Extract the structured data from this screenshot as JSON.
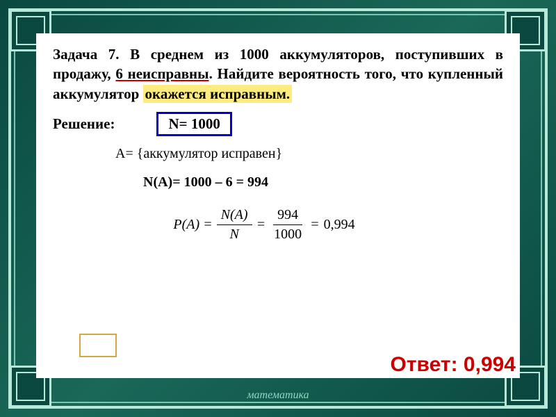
{
  "problem": {
    "prefix": "Задача 7. В среднем из 1000 аккумуляторов, поступивших в продажу, ",
    "underlined": "6 неисправны",
    "middle": ". Найдите вероятность того, что купленный аккумулятор ",
    "highlighted": "окажется исправным."
  },
  "solution": {
    "label": "Решение:",
    "n_total": "N= 1000",
    "event_definition": "A= {аккумулятор исправен}",
    "na_calculation": "N(A)= 1000 – 6 = 994",
    "formula": {
      "lhs": "P(A) =",
      "frac1_num": "N(A)",
      "frac1_den": "N",
      "eq1": "=",
      "frac2_num": "994",
      "frac2_den": "1000",
      "eq2": "=",
      "result": "0,994"
    }
  },
  "answer": {
    "label": "Ответ: ",
    "value": "0,994"
  },
  "footer": "математика",
  "style": {
    "frame_gradient": [
      "#0a4840",
      "#1a6858"
    ],
    "border_light": "#b8e8d8",
    "border_mid": "#7ac8b0",
    "content_bg": "#ffffff",
    "underline_color": "#cc0000",
    "highlight_bg": "#ffec80",
    "n_box_border": "#0000cc",
    "empty_box_border": "#d4a840",
    "answer_color": "#cc0000",
    "footer_color": "#8cd8c0",
    "problem_fontsize": 21,
    "body_fontsize": 20,
    "answer_fontsize": 30
  }
}
